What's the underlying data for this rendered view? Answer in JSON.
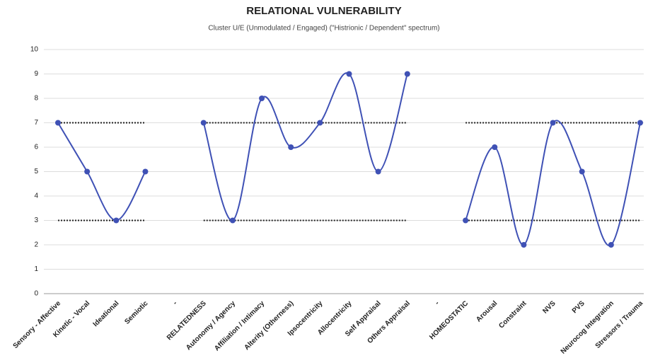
{
  "chart_data": {
    "type": "line",
    "title": "RELATIONAL VULNERABILITY",
    "subtitle": "Cluster U/E (Unmodulated / Engaged) (\"Histrionic / Dependent\" spectrum)",
    "categories": [
      "Sensory - Affective",
      "Kinetic - Vocal",
      "Ideational",
      "Semiotic",
      "-",
      "RELATEDNESS",
      "Autonomy / Agency",
      "Affiliation / Intimacy",
      "Alterity (Otherness)",
      "Ipsocentricity",
      "Allocentricity",
      "Self Appraisal",
      "Others Appraisal",
      "-",
      "HOMEOSTATIC",
      "Arousal",
      "Constraint",
      "NVS",
      "PVS",
      "Neurocog Integration",
      "Stressors / Trauma"
    ],
    "series": [
      {
        "color": "#3f51b5",
        "smooth": true,
        "markers": true,
        "values": [
          7,
          5,
          3,
          5,
          null,
          7,
          3,
          8,
          6,
          7,
          9,
          5,
          9,
          null,
          3,
          6,
          2,
          7,
          5,
          2,
          7
        ]
      },
      {
        "color": "#222222",
        "dotted": true,
        "values": [
          7,
          7,
          7,
          7,
          null,
          7,
          7,
          7,
          7,
          7,
          7,
          7,
          7,
          null,
          7,
          7,
          7,
          7,
          7,
          7,
          7
        ]
      },
      {
        "color": "#222222",
        "dotted": true,
        "values": [
          3,
          3,
          3,
          3,
          null,
          3,
          3,
          3,
          3,
          3,
          3,
          3,
          3,
          null,
          3,
          3,
          3,
          3,
          3,
          3,
          3
        ]
      }
    ],
    "ylim": [
      0,
      10
    ],
    "yticks": [
      0,
      1,
      2,
      3,
      4,
      5,
      6,
      7,
      8,
      9,
      10
    ],
    "grid": true
  }
}
